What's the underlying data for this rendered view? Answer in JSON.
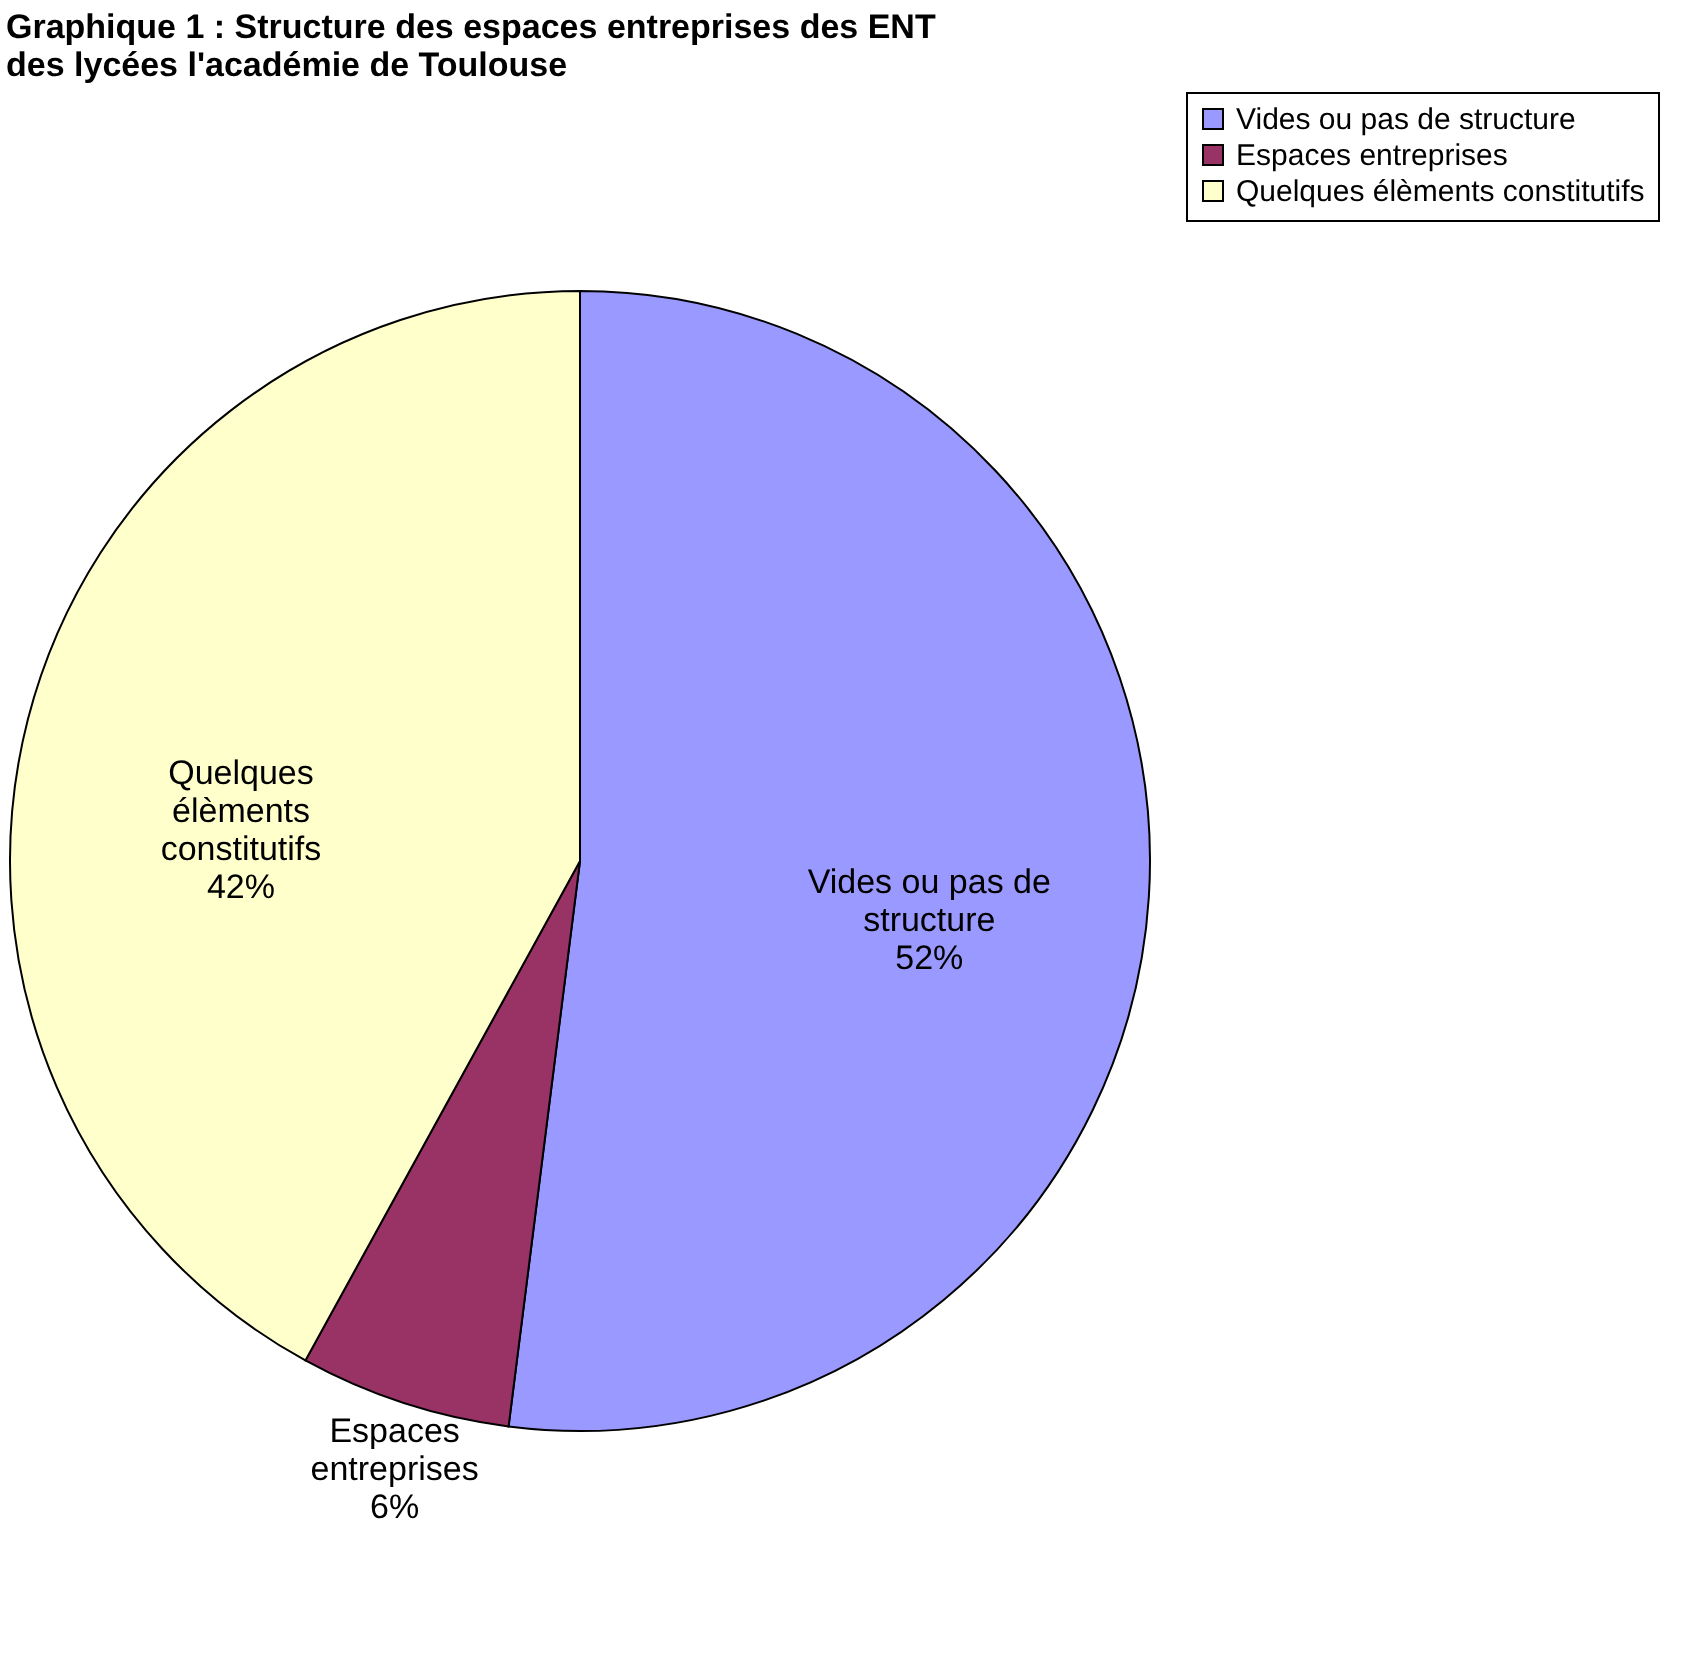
{
  "chart_data": {
    "type": "pie",
    "title": "Graphique  1 : Structure des espaces entreprises des ENT des lycées  l'académie de Toulouse",
    "categories": [
      "Vides ou pas de structure",
      "Espaces entreprises",
      "Quelques élèments constitutifs"
    ],
    "values": [
      52,
      6,
      42
    ],
    "value_labels": [
      "52%",
      "6%",
      "42%"
    ],
    "colors": [
      "#9999ff",
      "#993366",
      "#ffffcc"
    ],
    "legend": "top right"
  }
}
